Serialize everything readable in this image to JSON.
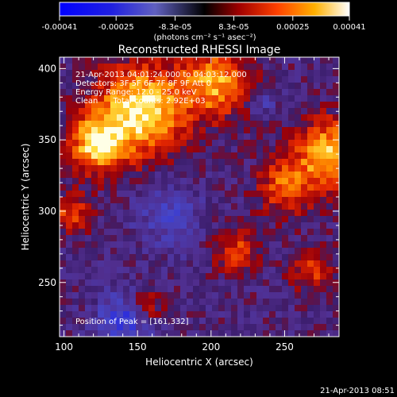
{
  "chart_data": {
    "type": "heatmap",
    "title": "Reconstructed RHESSI Image",
    "xlabel": "Heliocentric X (arcsec)",
    "ylabel": "Heliocentric Y (arcsec)",
    "xlim": [
      97,
      287
    ],
    "ylim": [
      212,
      408
    ],
    "x_ticks": [
      100,
      150,
      200,
      250
    ],
    "y_ticks": [
      250,
      300,
      350,
      400
    ],
    "colorbar": {
      "ticks": [
        "-0.00041",
        "-0.00025",
        "-8.3e-05",
        "8.3e-05",
        "0.00025",
        "0.00041"
      ],
      "tick_values": [
        -0.00041,
        -0.00025,
        -8.3e-05,
        8.3e-05,
        0.00025,
        0.00041
      ],
      "range": [
        -0.00041,
        0.00041
      ],
      "units": "(photons cm⁻² s⁻¹ asec⁻²)"
    },
    "annotations": [
      "21-Apr-2013 04:01:24.000 to 04:03:12.000",
      "Detectors: 3F 5F 6F 7F 8F 9F Att 0",
      "Energy Range: 12.0 - 25.0 keV",
      "Clean      Total counts: 2.92E+03"
    ],
    "peak_label": "Position of Peak = [161,332]",
    "peak_position": [
      161,
      332
    ],
    "colors": {
      "stops": [
        "#0000ff",
        "#4040c0",
        "#5a2a8c",
        "#000000",
        "#d01000",
        "#ff7000",
        "#ffd030",
        "#ffffff"
      ]
    },
    "grid": false
  },
  "footer": {
    "timestamp": "21-Apr-2013 08:51"
  }
}
